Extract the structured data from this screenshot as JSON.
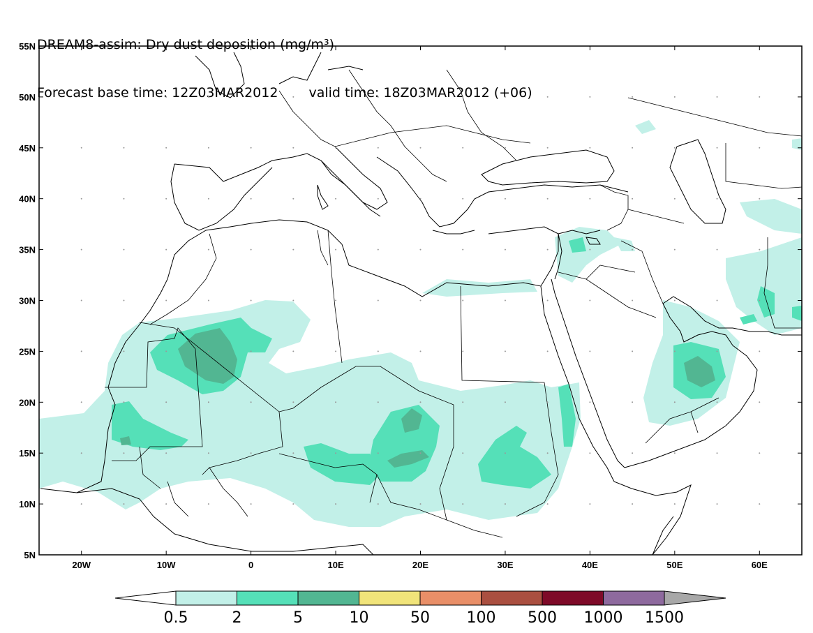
{
  "title_line1": "DREAM8-assim: Dry dust deposition (mg/m³)",
  "forecast_base": "Forecast base time: 12Z03MAR2012",
  "valid_time": "valid time: 18Z03MAR2012 (+06)",
  "lon_labels": [
    "20W",
    "10W",
    "0",
    "10E",
    "20E",
    "30E",
    "40E",
    "50E",
    "60E"
  ],
  "lon_values": [
    -20,
    -10,
    0,
    10,
    20,
    30,
    40,
    50,
    60
  ],
  "lat_labels": [
    "55N",
    "50N",
    "45N",
    "40N",
    "35N",
    "30N",
    "25N",
    "20N",
    "15N",
    "10N",
    "5N"
  ],
  "lat_values": [
    55,
    50,
    45,
    40,
    35,
    30,
    25,
    20,
    15,
    10,
    5
  ],
  "map_extent": {
    "lon_min": -25,
    "lon_max": 65,
    "lat_min": 5,
    "lat_max": 55
  },
  "legend": {
    "labels": [
      "0.5",
      "2",
      "5",
      "10",
      "50",
      "100",
      "500",
      "1000",
      "1500"
    ],
    "colors": [
      "#c2f0e8",
      "#55e0b8",
      "#52b692",
      "#f1e47a",
      "#e98f68",
      "#aa4f40",
      "#7e0a28",
      "#8e6a9e"
    ],
    "low_arrow_color": "#ffffff",
    "high_arrow_color": "#a8a8a8"
  },
  "level_colors": {
    "light": "#c2f0e8",
    "medium": "#55e0b8",
    "dark": "#52b692"
  }
}
